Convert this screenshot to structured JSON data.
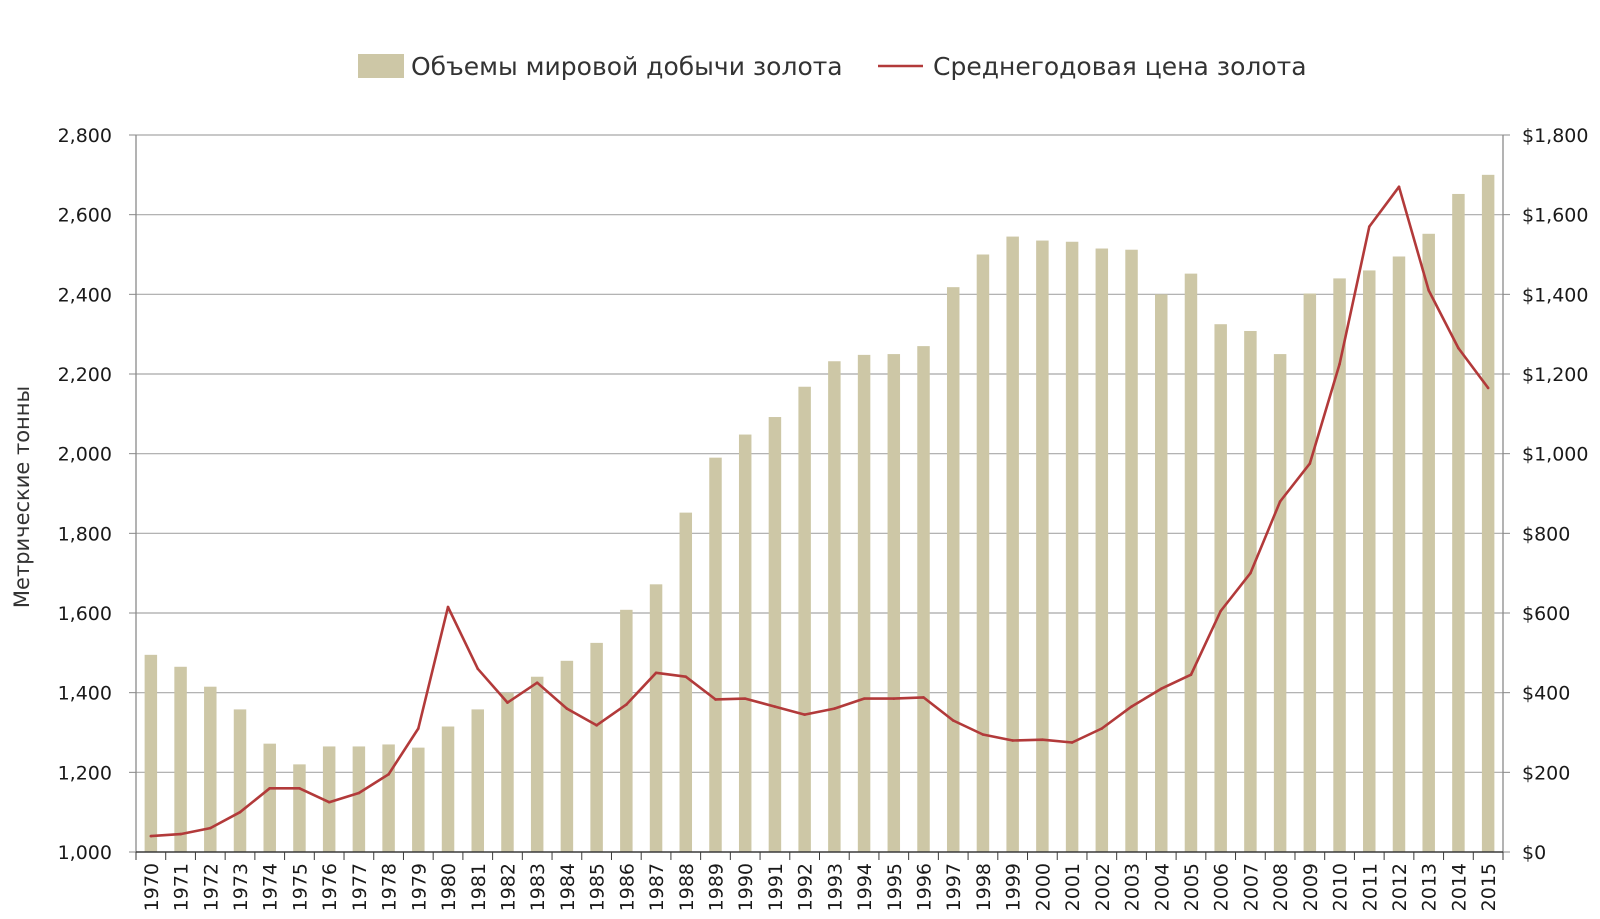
{
  "chart_data": {
    "type": "bar+line",
    "title": "",
    "legend": {
      "position": "top-center",
      "entries": [
        {
          "label": "Объемы мировой добычи золота",
          "kind": "bar"
        },
        {
          "label": "Среднегодовая цена золота",
          "kind": "line"
        }
      ]
    },
    "ylabel": "Метрические тонны",
    "ylim": [
      1000,
      2800
    ],
    "y_ticks": [
      "1,000",
      "1,200",
      "1,400",
      "1,600",
      "1,800",
      "2,000",
      "2,200",
      "2,400",
      "2,600",
      "2,800"
    ],
    "y2lim": [
      0,
      1800
    ],
    "y2_ticks": [
      "$0",
      "$200",
      "$400",
      "$600",
      "$800",
      "$1,000",
      "$1,200",
      "$1,400",
      "$1,600",
      "$1,800"
    ],
    "grid": true,
    "categories": [
      "1970",
      "1971",
      "1972",
      "1973",
      "1974",
      "1975",
      "1976",
      "1977",
      "1978",
      "1979",
      "1980",
      "1981",
      "1982",
      "1983",
      "1984",
      "1985",
      "1986",
      "1987",
      "1988",
      "1989",
      "1990",
      "1991",
      "1992",
      "1993",
      "1994",
      "1995",
      "1996",
      "1997",
      "1998",
      "1999",
      "2000",
      "2001",
      "2002",
      "2003",
      "2004",
      "2005",
      "2006",
      "2007",
      "2008",
      "2009",
      "2010",
      "2011",
      "2012",
      "2013",
      "2014",
      "2015"
    ],
    "series": [
      {
        "name": "Объемы мировой добычи золота",
        "type": "bar",
        "axis": "left",
        "color": "#cdc7a6",
        "values": [
          1495,
          1465,
          1415,
          1358,
          1272,
          1220,
          1265,
          1265,
          1270,
          1262,
          1315,
          1358,
          1400,
          1440,
          1480,
          1525,
          1608,
          1672,
          1852,
          1990,
          2048,
          2092,
          2168,
          2232,
          2248,
          2250,
          2270,
          2418,
          2500,
          2545,
          2535,
          2532,
          2515,
          2512,
          2400,
          2452,
          2325,
          2308,
          2250,
          2402,
          2440,
          2460,
          2495,
          2552,
          2652,
          2700
        ]
      },
      {
        "name": "Среднегодовая цена золота",
        "type": "line",
        "axis": "right",
        "color": "#b23a3a",
        "values": [
          40,
          45,
          60,
          100,
          160,
          160,
          125,
          148,
          195,
          310,
          615,
          460,
          375,
          425,
          360,
          318,
          370,
          450,
          440,
          383,
          385,
          365,
          345,
          360,
          385,
          385,
          388,
          330,
          295,
          280,
          282,
          275,
          310,
          365,
          410,
          445,
          605,
          700,
          880,
          975,
          1225,
          1570,
          1670,
          1410,
          1265,
          1165
        ]
      }
    ]
  }
}
